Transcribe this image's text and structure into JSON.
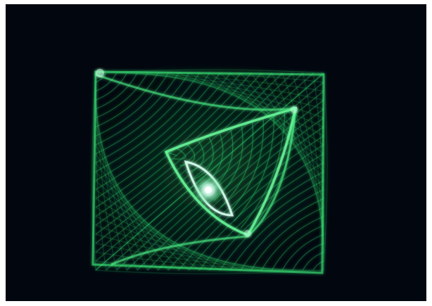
{
  "image": {
    "background_color": "#02060f",
    "frame_color": "#ffffff",
    "light_color": "#2fe070",
    "core_color": "#d8fff0"
  }
}
